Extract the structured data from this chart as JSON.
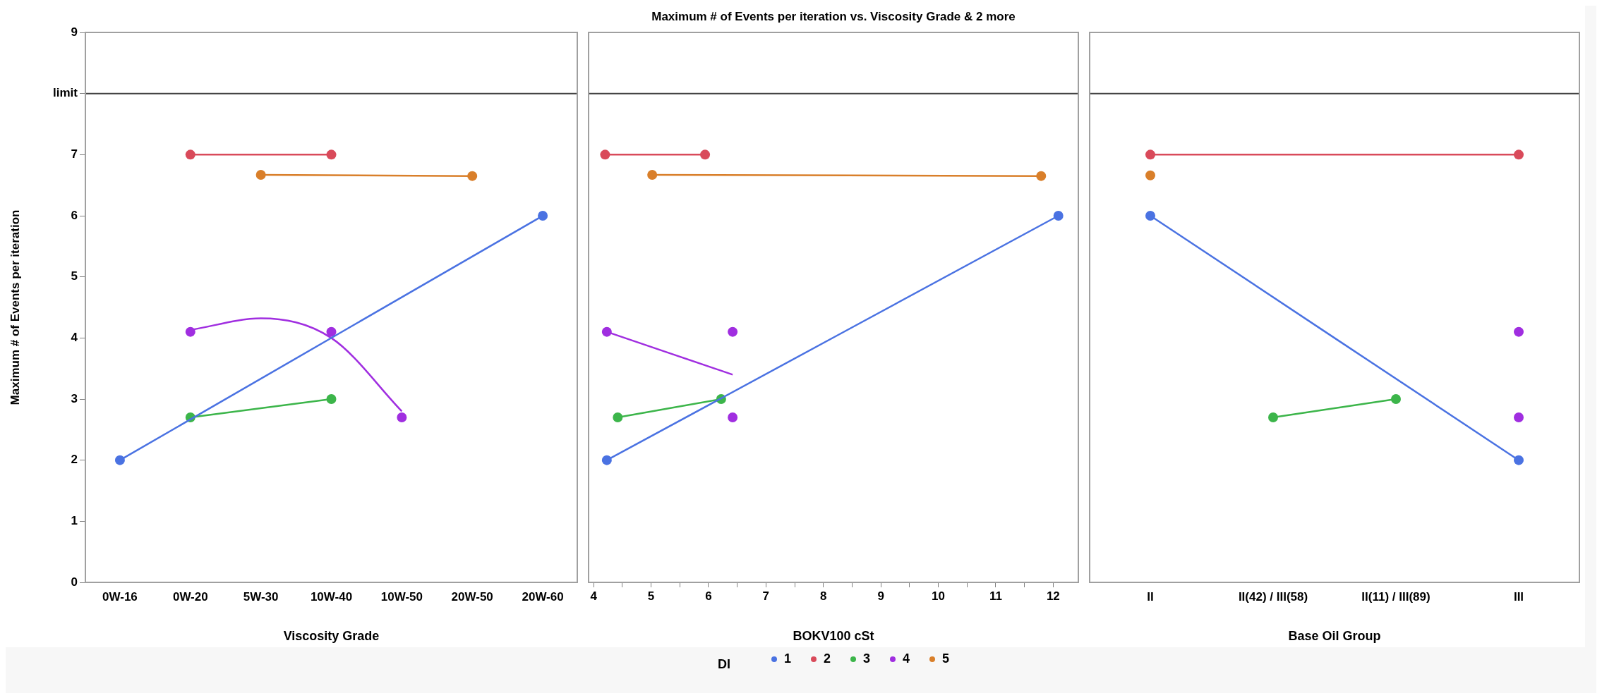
{
  "chart_data": [
    {
      "type": "line",
      "xlabel": "Viscosity Grade",
      "ylabel": "Maximum # of Events per iteration",
      "categories": [
        "0W-16",
        "0W-20",
        "5W-30",
        "10W-40",
        "10W-50",
        "20W-50",
        "20W-60"
      ],
      "ylim": [
        0,
        9
      ],
      "yticks": [
        0,
        1,
        2,
        3,
        4,
        5,
        6,
        7,
        {
          "value": 8,
          "label": "limit"
        },
        9
      ],
      "marker": "circle",
      "ref_lines": [
        {
          "axis": "y",
          "value": 8,
          "color": "#404040"
        }
      ],
      "series": [
        {
          "color": "#4a72e2",
          "x": [
            "0W-16",
            "20W-60"
          ],
          "values": [
            2,
            6
          ]
        },
        {
          "color": "#d94a5a",
          "x": [
            "0W-20",
            "10W-40"
          ],
          "values": [
            7,
            7
          ]
        },
        {
          "color": "#3cb54a",
          "x": [
            "0W-20",
            "10W-40"
          ],
          "values": [
            2.7,
            3.0
          ]
        },
        {
          "type": "scatter",
          "color": "#a02ee0",
          "x": [
            "0W-20",
            "10W-40",
            "10W-50"
          ],
          "values": [
            4.1,
            4.1,
            2.7
          ]
        },
        {
          "color": "#a02ee0",
          "marker": "none",
          "x": [
            "0W-20",
            "5W-30",
            "10W-40",
            "10W-50"
          ],
          "values": [
            4.13,
            4.32,
            4.0,
            2.8
          ]
        },
        {
          "color": "#d97f2a",
          "x": [
            "5W-30",
            "20W-50"
          ],
          "values": [
            6.67,
            6.65
          ]
        }
      ]
    },
    {
      "type": "line",
      "title": "Maximum # of Events per iteration vs. Viscosity Grade & 2 more",
      "xlabel": "BOKV100 cSt",
      "xlim": [
        3.9,
        12.45
      ],
      "xticks": [
        4,
        {
          "value": 4.5,
          "label": null
        },
        5,
        {
          "value": 5.5,
          "label": null
        },
        6,
        {
          "value": 6.5,
          "label": null
        },
        7,
        {
          "value": 7.5,
          "label": null
        },
        8,
        {
          "value": 8.5,
          "label": null
        },
        9,
        {
          "value": 9.5,
          "label": null
        },
        10,
        {
          "value": 10.5,
          "label": null
        },
        11,
        {
          "value": 11.5,
          "label": null
        },
        12
      ],
      "ylim": [
        0,
        9
      ],
      "tick_labels": "x",
      "marker": "circle",
      "legend": "bottom",
      "legend_title": "DI",
      "ref_lines": [
        {
          "axis": "y",
          "value": 8,
          "color": "#404040"
        }
      ],
      "series": [
        {
          "name": "1",
          "color": "#4a72e2",
          "x": [
            4.23,
            12.09
          ],
          "values": [
            2,
            6
          ]
        },
        {
          "name": "2",
          "color": "#d94a5a",
          "x": [
            4.2,
            5.94
          ],
          "values": [
            7,
            7
          ]
        },
        {
          "name": "3",
          "color": "#3cb54a",
          "x": [
            4.42,
            6.22
          ],
          "values": [
            2.7,
            3.0
          ]
        },
        {
          "type": "scatter",
          "name": "4",
          "color": "#a02ee0",
          "x": [
            4.23,
            6.42,
            6.42
          ],
          "values": [
            4.1,
            4.1,
            2.7
          ]
        },
        {
          "color": "#a02ee0",
          "marker": "none",
          "x": [
            4.23,
            6.42
          ],
          "values": [
            4.1,
            3.4
          ]
        },
        {
          "name": "5",
          "color": "#d97f2a",
          "x": [
            5.02,
            11.79
          ],
          "values": [
            6.67,
            6.65
          ]
        }
      ]
    },
    {
      "type": "line",
      "xlabel": "Base Oil Group",
      "categories": [
        "II",
        "II(42) / III(58)",
        "II(11) / III(89)",
        "III"
      ],
      "ylim": [
        0,
        9
      ],
      "tick_labels": "x",
      "marker": "circle",
      "ref_lines": [
        {
          "axis": "y",
          "value": 8,
          "color": "#404040"
        }
      ],
      "series": [
        {
          "color": "#4a72e2",
          "x": [
            "II",
            "III"
          ],
          "values": [
            6,
            2
          ]
        },
        {
          "color": "#d94a5a",
          "x": [
            "II",
            "III"
          ],
          "values": [
            7,
            7
          ]
        },
        {
          "color": "#3cb54a",
          "x": [
            "II(42) / III(58)",
            "II(11) / III(89)"
          ],
          "values": [
            2.7,
            3.0
          ]
        },
        {
          "type": "scatter",
          "color": "#a02ee0",
          "x": [
            "III",
            "III",
            "III"
          ],
          "values": [
            4.1,
            null,
            2.7
          ]
        },
        {
          "type": "scatter",
          "color": "#d97f2a",
          "x": [
            "II",
            "II"
          ],
          "values": [
            null,
            6.66
          ]
        }
      ]
    }
  ]
}
